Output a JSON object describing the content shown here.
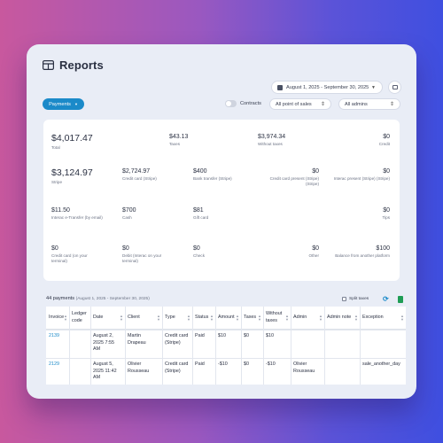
{
  "header": {
    "title": "Reports",
    "icon": "table-icon"
  },
  "toolbar": {
    "date_range": "August 1, 2025 - September 30, 2025",
    "payments_label": "Payments",
    "contracts_label": "Contracts",
    "pos_select": "All point of sales",
    "admins_select": "All admins"
  },
  "stats": [
    {
      "value": "$4,017.47",
      "label": "Total"
    },
    {
      "value": "$43.13",
      "label": "Taxes"
    },
    {
      "value": "$3,974.34",
      "label": "Without taxes"
    },
    {
      "value": "$0",
      "label": "Credit"
    },
    {
      "value": "$3,124.97",
      "label": "Stripe"
    },
    {
      "value": "$2,724.97",
      "label": "Credit card (Stripe)"
    },
    {
      "value": "$400",
      "label": "Bank transfer (Stripe)"
    },
    {
      "value": "$0",
      "label": "Credit card present (Stripe) (Stripe)"
    },
    {
      "value": "$0",
      "label": "Interac present (Stripe) (Stripe)"
    },
    {
      "value": "$11.50",
      "label": "Interac e-Transfer (by email)"
    },
    {
      "value": "$700",
      "label": "Cash"
    },
    {
      "value": "$81",
      "label": "Gift card"
    },
    {
      "value": "$0",
      "label": "Tips"
    },
    {
      "value": "$0",
      "label": "Credit card (on your terminal)"
    },
    {
      "value": "$0",
      "label": "Debit (Interac on your terminal)"
    },
    {
      "value": "$0",
      "label": "Check"
    },
    {
      "value": "$0",
      "label": "Other"
    },
    {
      "value": "$100",
      "label": "Balance from another platform"
    }
  ],
  "table": {
    "count_label": "44 payments",
    "range_label": "(August 1, 2025 - September 30, 2025)",
    "split_taxes_label": "Split taxes",
    "columns": [
      "Invoice",
      "Ledger code",
      "Date",
      "Client",
      "Type",
      "Status",
      "Amount",
      "Taxes",
      "Without taxes",
      "Admin",
      "Admin note",
      "Exception"
    ],
    "rows": [
      [
        "2139",
        "",
        "August 2, 2025 7:55 AM",
        "Martin Drapeau",
        "Credit card (Stripe)",
        "Paid",
        "$10",
        "$0",
        "$10",
        "",
        "",
        ""
      ],
      [
        "2129",
        "",
        "August 5, 2025 11:42 AM",
        "Olivier Rousseau",
        "Credit card (Stripe)",
        "Paid",
        "-$10",
        "$0",
        "-$10",
        "Olivier Rousseau",
        "",
        "sale_another_day"
      ]
    ]
  },
  "colors": {
    "accent": "#1b8ac9",
    "excel": "#1f9d55"
  }
}
